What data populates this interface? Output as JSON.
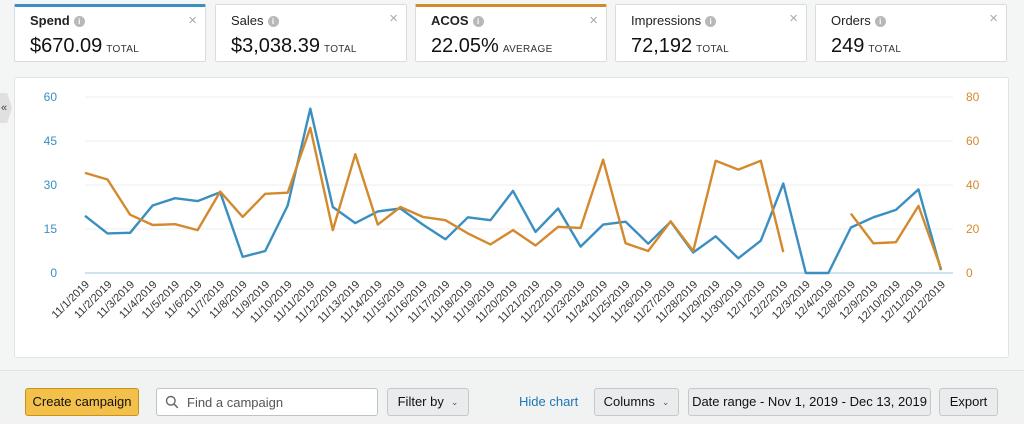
{
  "metrics": [
    {
      "name": "Spend",
      "value": "$670.09",
      "unit": "TOTAL",
      "active": "blue"
    },
    {
      "name": "Sales",
      "value": "$3,038.39",
      "unit": "TOTAL",
      "active": ""
    },
    {
      "name": "ACOS",
      "value": "22.05%",
      "unit": "AVERAGE",
      "active": "orange"
    },
    {
      "name": "Impressions",
      "value": "72,192",
      "unit": "TOTAL",
      "active": ""
    },
    {
      "name": "Orders",
      "value": "249",
      "unit": "TOTAL",
      "active": ""
    }
  ],
  "info_glyph": "i",
  "close_glyph": "×",
  "collapse_glyph": "«",
  "colors": {
    "spend": "#3a8fc0",
    "acos": "#d4892c",
    "grid": "#ececec",
    "primary": "#f3c14b",
    "link": "#1e77b6"
  },
  "chart_data": {
    "type": "line",
    "categories": [
      "11/1/2019",
      "11/2/2019",
      "11/3/2019",
      "11/4/2019",
      "11/5/2019",
      "11/6/2019",
      "11/7/2019",
      "11/8/2019",
      "11/9/2019",
      "11/10/2019",
      "11/11/2019",
      "11/12/2019",
      "11/13/2019",
      "11/14/2019",
      "11/15/2019",
      "11/16/2019",
      "11/17/2019",
      "11/18/2019",
      "11/19/2019",
      "11/20/2019",
      "11/21/2019",
      "11/22/2019",
      "11/23/2019",
      "11/24/2019",
      "11/25/2019",
      "11/26/2019",
      "11/27/2019",
      "11/28/2019",
      "11/29/2019",
      "11/30/2019",
      "12/1/2019",
      "12/2/2019",
      "12/3/2019",
      "12/4/2019",
      "12/8/2019",
      "12/9/2019",
      "12/10/2019",
      "12/11/2019",
      "12/12/2019"
    ],
    "left_axis": {
      "ticks": [
        0,
        15,
        30,
        45,
        60
      ],
      "ylim": [
        0,
        60
      ]
    },
    "right_axis": {
      "ticks": [
        0,
        20,
        40,
        60,
        80
      ],
      "ylim": [
        0,
        80
      ]
    },
    "series": [
      {
        "name": "Spend",
        "axis": "left",
        "values": [
          19.5,
          13.5,
          13.7,
          23,
          25.5,
          24.5,
          27.5,
          5.5,
          7.5,
          23,
          56,
          22.5,
          17,
          21,
          22,
          16.5,
          11.5,
          19,
          18,
          28,
          14,
          22,
          9,
          16.5,
          17.5,
          10,
          17.5,
          7,
          12.5,
          5,
          11,
          30.5,
          0,
          0,
          15.5,
          19,
          21.5,
          28.5,
          1
        ]
      },
      {
        "name": "ACOS",
        "axis": "right",
        "values": [
          45.5,
          42.5,
          26.5,
          21.8,
          22.2,
          19.5,
          37,
          25.5,
          36,
          36.5,
          66,
          19.5,
          54,
          22,
          30,
          25.5,
          24,
          18,
          13,
          19.5,
          12.5,
          21,
          20.5,
          51.5,
          13.5,
          10,
          23.5,
          10,
          51,
          47,
          51,
          9.5,
          null,
          null,
          27,
          13.5,
          14,
          30.5,
          2
        ]
      }
    ],
    "grid": true,
    "legend": "none"
  },
  "toolbar": {
    "create_label": "Create campaign",
    "search_placeholder": "Find a campaign",
    "filter_label": "Filter by",
    "hide_chart_label": "Hide chart",
    "columns_label": "Columns",
    "date_range_label": "Date range - Nov 1, 2019 - Dec 13, 2019",
    "export_label": "Export",
    "caret_glyph": "⌄"
  }
}
